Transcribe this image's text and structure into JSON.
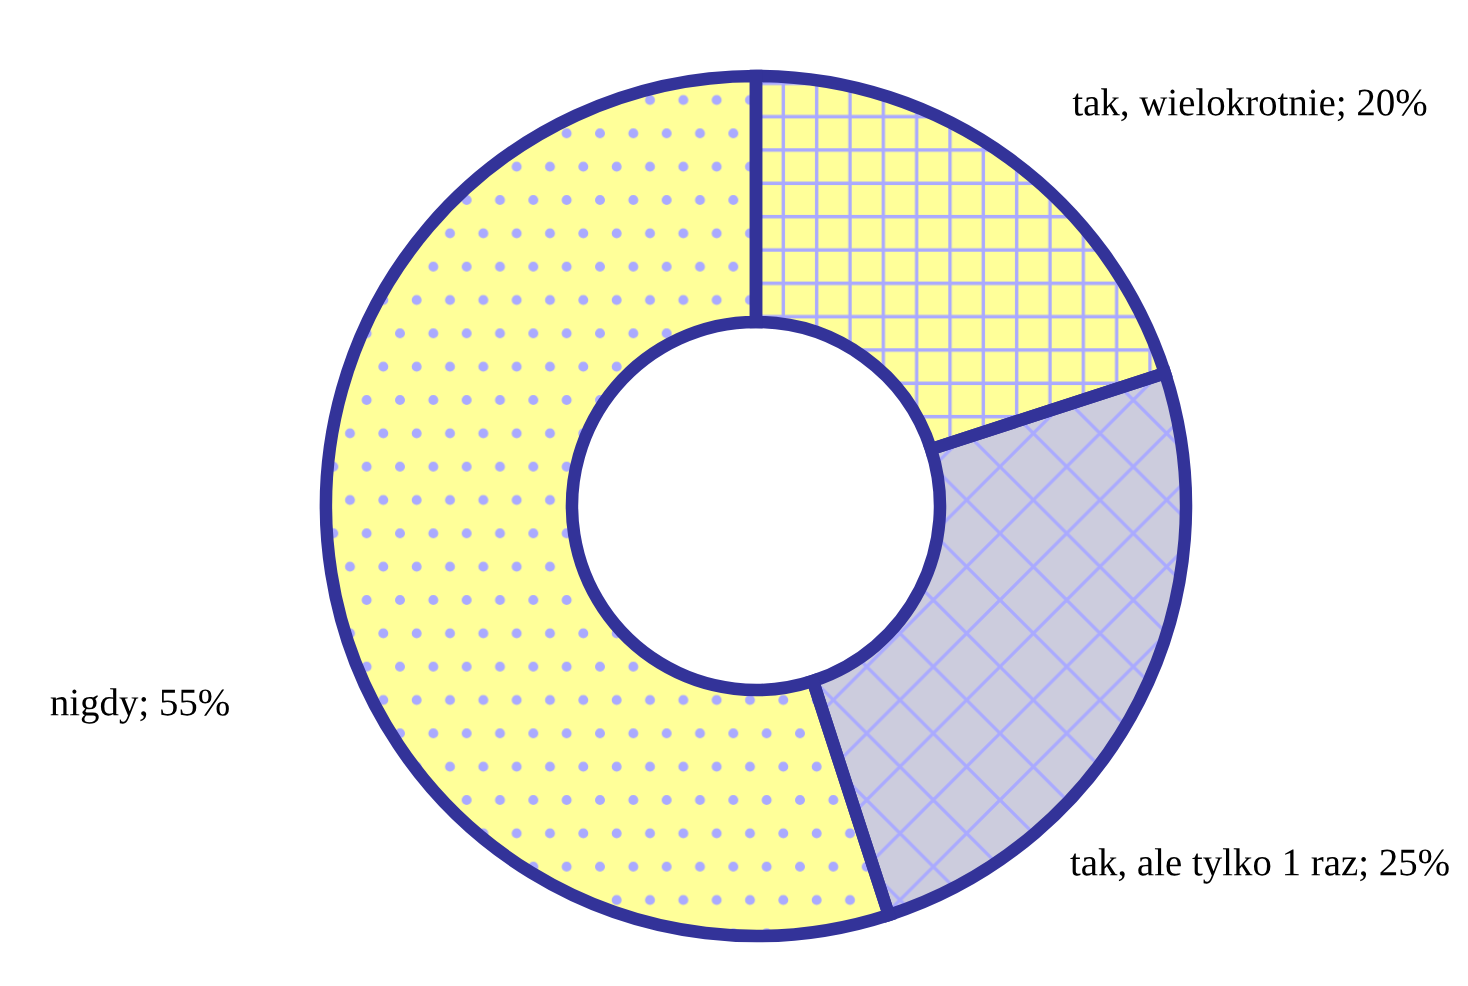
{
  "chart_data": {
    "type": "donut",
    "categories": [
      "tak, wielokrotnie",
      "tak, ale tylko 1 raz",
      "nigdy"
    ],
    "values": [
      20,
      25,
      55
    ],
    "value_labels": [
      "20%",
      "25%",
      "55%"
    ],
    "colors": [
      "#ffff99",
      "#ccccdd",
      "#ffff99"
    ],
    "legend": false
  }
}
